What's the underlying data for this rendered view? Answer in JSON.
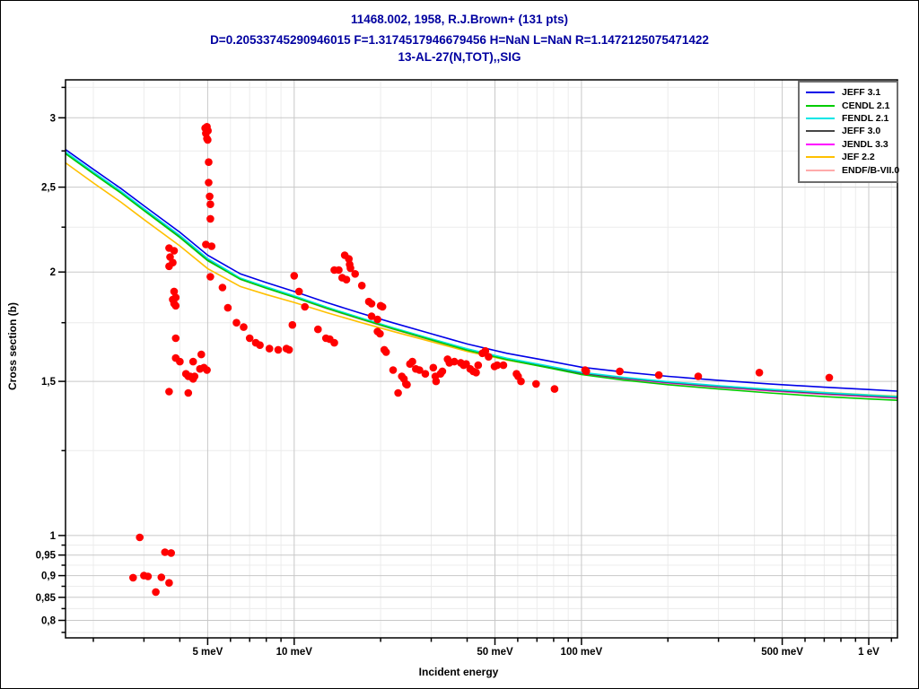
{
  "title": {
    "line1": "11468.002, 1958, R.J.Brown+ (131 pts)",
    "line2": "D=0.20533745290946015 F=1.3174517946679456 H=NaN L=NaN R=1.1472125075471422",
    "line3": "13-AL-27(N,TOT),,SIG",
    "color": "#0000a0"
  },
  "axes": {
    "x_label": "Incident energy",
    "y_label": "Cross section (b)"
  },
  "chart_data": {
    "type": "scatter",
    "title": "13-AL-27(N,TOT),,SIG",
    "xlabel": "Incident energy",
    "ylabel": "Cross section (b)",
    "x_scale": "log",
    "y_scale": "log",
    "x_unit": "meV",
    "y_unit": "b",
    "x_range": [
      1.6,
      1259
    ],
    "y_range": [
      0.764,
      3.315
    ],
    "grid": true,
    "legend_position": "top-right",
    "x_ticks": [
      {
        "v": 5,
        "label": "5 meV"
      },
      {
        "v": 10,
        "label": "10 meV"
      },
      {
        "v": 50,
        "label": "50 meV"
      },
      {
        "v": 100,
        "label": "100 meV"
      },
      {
        "v": 500,
        "label": "500 meV"
      },
      {
        "v": 1000,
        "label": "1 eV"
      }
    ],
    "x_minor_ticks": [
      2,
      3,
      4,
      6,
      7,
      8,
      9,
      20,
      30,
      40,
      60,
      70,
      80,
      90,
      200,
      300,
      400,
      600,
      700,
      800,
      900,
      1200
    ],
    "y_ticks": [
      {
        "v": 3,
        "label": "3"
      },
      {
        "v": 2.5,
        "label": "2,5"
      },
      {
        "v": 2,
        "label": "2"
      },
      {
        "v": 1.5,
        "label": "1,5"
      },
      {
        "v": 1,
        "label": "1"
      },
      {
        "v": 0.95,
        "label": "0,95"
      },
      {
        "v": 0.9,
        "label": "0,9"
      },
      {
        "v": 0.85,
        "label": "0,85"
      },
      {
        "v": 0.8,
        "label": "0,8"
      }
    ],
    "y_minor_ticks": [
      3.25,
      2.75,
      2.25,
      1.75,
      1.25,
      0.975,
      0.925,
      0.875,
      0.825,
      0.775
    ],
    "curve_energies_meV": [
      1.6,
      2,
      2.5,
      3,
      4,
      5,
      6.5,
      8,
      10,
      13,
      17,
      22,
      30,
      40,
      55,
      75,
      100,
      140,
      200,
      300,
      450,
      700,
      1000,
      1259
    ],
    "evaluations": [
      {
        "name": "JEFF 3.1",
        "color": "#0000e8",
        "values": [
          2.76,
          2.62,
          2.49,
          2.38,
          2.22,
          2.09,
          1.99,
          1.945,
          1.9,
          1.845,
          1.795,
          1.75,
          1.7,
          1.655,
          1.615,
          1.585,
          1.557,
          1.537,
          1.52,
          1.504,
          1.49,
          1.477,
          1.468,
          1.462
        ]
      },
      {
        "name": "CENDL 2.1",
        "color": "#00cc00",
        "values": [
          2.73,
          2.59,
          2.46,
          2.35,
          2.19,
          2.06,
          1.962,
          1.916,
          1.872,
          1.818,
          1.768,
          1.723,
          1.673,
          1.628,
          1.588,
          1.557,
          1.527,
          1.505,
          1.487,
          1.47,
          1.455,
          1.441,
          1.432,
          1.427
        ]
      },
      {
        "name": "FENDL 2.1",
        "color": "#00e6e6",
        "values": [
          2.742,
          2.602,
          2.472,
          2.362,
          2.202,
          2.072,
          1.968,
          1.923,
          1.878,
          1.823,
          1.773,
          1.728,
          1.678,
          1.634,
          1.594,
          1.564,
          1.536,
          1.516,
          1.499,
          1.483,
          1.469,
          1.456,
          1.447,
          1.441
        ]
      },
      {
        "name": "JEFF 3.0",
        "color": "#464646",
        "values": [
          2.738,
          2.598,
          2.468,
          2.358,
          2.198,
          2.068,
          1.965,
          1.92,
          1.875,
          1.82,
          1.77,
          1.725,
          1.675,
          1.631,
          1.591,
          1.561,
          1.533,
          1.513,
          1.496,
          1.48,
          1.466,
          1.453,
          1.444,
          1.438
        ]
      },
      {
        "name": "JENDL 3.3",
        "color": "#ff00ff",
        "values": [
          2.735,
          2.595,
          2.465,
          2.355,
          2.195,
          2.065,
          1.963,
          1.918,
          1.873,
          1.818,
          1.768,
          1.723,
          1.673,
          1.629,
          1.589,
          1.559,
          1.531,
          1.511,
          1.494,
          1.478,
          1.464,
          1.451,
          1.442,
          1.436
        ]
      },
      {
        "name": "JEF 2.2",
        "color": "#ffc000",
        "values": [
          2.665,
          2.528,
          2.402,
          2.296,
          2.142,
          2.018,
          1.925,
          1.885,
          1.846,
          1.797,
          1.752,
          1.711,
          1.665,
          1.623,
          1.586,
          1.558,
          1.532,
          1.513,
          1.497,
          1.482,
          1.469,
          1.457,
          1.448,
          1.443
        ]
      },
      {
        "name": "ENDF/B-VII.0",
        "color": "#ffaaaa",
        "values": [
          2.733,
          2.593,
          2.463,
          2.353,
          2.193,
          2.063,
          1.961,
          1.916,
          1.871,
          1.816,
          1.766,
          1.721,
          1.671,
          1.627,
          1.587,
          1.557,
          1.529,
          1.509,
          1.492,
          1.476,
          1.462,
          1.449,
          1.44,
          1.434
        ]
      }
    ],
    "experimental": {
      "name": "11468.002, 1958, R.J.Brown+",
      "color": "#ff0000",
      "marker": "filled-circle",
      "points_meV_b": [
        [
          2.75,
          0.895
        ],
        [
          2.9,
          0.995
        ],
        [
          3.0,
          0.9
        ],
        [
          3.1,
          0.898
        ],
        [
          3.3,
          0.862
        ],
        [
          3.45,
          0.896
        ],
        [
          3.55,
          0.957
        ],
        [
          3.67,
          0.883
        ],
        [
          3.73,
          0.955
        ],
        [
          3.67,
          2.13
        ],
        [
          3.82,
          2.115
        ],
        [
          3.7,
          2.08
        ],
        [
          3.78,
          2.05
        ],
        [
          3.67,
          2.03
        ],
        [
          3.82,
          1.9
        ],
        [
          3.87,
          1.87
        ],
        [
          3.78,
          1.86
        ],
        [
          3.82,
          1.84
        ],
        [
          3.87,
          1.83
        ],
        [
          3.87,
          1.68
        ],
        [
          3.87,
          1.595
        ],
        [
          4.0,
          1.58
        ],
        [
          4.2,
          1.53
        ],
        [
          4.28,
          1.52
        ],
        [
          4.35,
          1.52
        ],
        [
          4.45,
          1.51
        ],
        [
          4.5,
          1.52
        ],
        [
          3.67,
          1.46
        ],
        [
          4.28,
          1.455
        ],
        [
          4.45,
          1.58
        ],
        [
          4.7,
          1.55
        ],
        [
          4.75,
          1.61
        ],
        [
          4.85,
          1.555
        ],
        [
          4.97,
          1.545
        ],
        [
          4.9,
          2.92
        ],
        [
          4.97,
          2.93
        ],
        [
          5.01,
          2.9
        ],
        [
          4.93,
          2.88
        ],
        [
          4.97,
          2.84
        ],
        [
          5.0,
          2.83
        ],
        [
          5.04,
          2.67
        ],
        [
          5.04,
          2.53
        ],
        [
          5.08,
          2.44
        ],
        [
          5.11,
          2.39
        ],
        [
          5.11,
          2.3
        ],
        [
          4.93,
          2.15
        ],
        [
          5.16,
          2.14
        ],
        [
          5.11,
          1.975
        ],
        [
          5.63,
          1.92
        ],
        [
          5.88,
          1.82
        ],
        [
          6.3,
          1.75
        ],
        [
          6.67,
          1.73
        ],
        [
          7.0,
          1.68
        ],
        [
          7.35,
          1.66
        ],
        [
          7.6,
          1.65
        ],
        [
          8.2,
          1.635
        ],
        [
          8.8,
          1.63
        ],
        [
          9.4,
          1.635
        ],
        [
          9.6,
          1.63
        ],
        [
          9.86,
          1.74
        ],
        [
          10.0,
          1.98
        ],
        [
          10.4,
          1.9
        ],
        [
          10.9,
          1.825
        ],
        [
          12.1,
          1.72
        ],
        [
          12.9,
          1.68
        ],
        [
          13.3,
          1.676
        ],
        [
          13.8,
          1.66
        ],
        [
          13.8,
          2.01
        ],
        [
          14.3,
          2.01
        ],
        [
          15.0,
          2.09
        ],
        [
          15.5,
          2.07
        ],
        [
          15.6,
          2.04
        ],
        [
          15.7,
          2.02
        ],
        [
          16.3,
          1.99
        ],
        [
          14.7,
          1.97
        ],
        [
          15.2,
          1.96
        ],
        [
          17.2,
          1.93
        ],
        [
          18.2,
          1.85
        ],
        [
          18.6,
          1.84
        ],
        [
          20.0,
          1.83
        ],
        [
          20.3,
          1.825
        ],
        [
          18.6,
          1.78
        ],
        [
          19.5,
          1.765
        ],
        [
          19.5,
          1.71
        ],
        [
          19.9,
          1.7
        ],
        [
          20.6,
          1.63
        ],
        [
          20.9,
          1.62
        ],
        [
          22.1,
          1.545
        ],
        [
          23.0,
          1.455
        ],
        [
          23.7,
          1.52
        ],
        [
          24.1,
          1.51
        ],
        [
          24.5,
          1.49
        ],
        [
          24.7,
          1.487
        ],
        [
          25.3,
          1.57
        ],
        [
          25.8,
          1.58
        ],
        [
          26.5,
          1.55
        ],
        [
          27.3,
          1.545
        ],
        [
          28.6,
          1.53
        ],
        [
          30.5,
          1.555
        ],
        [
          31.0,
          1.52
        ],
        [
          31.2,
          1.5
        ],
        [
          32.3,
          1.53
        ],
        [
          32.8,
          1.54
        ],
        [
          34.2,
          1.59
        ],
        [
          34.7,
          1.575
        ],
        [
          36.1,
          1.58
        ],
        [
          38.0,
          1.575
        ],
        [
          38.9,
          1.565
        ],
        [
          39.7,
          1.57
        ],
        [
          41.0,
          1.55
        ],
        [
          42.0,
          1.54
        ],
        [
          43.0,
          1.535
        ],
        [
          43.7,
          1.565
        ],
        [
          45.2,
          1.615
        ],
        [
          46.3,
          1.625
        ],
        [
          47.5,
          1.6
        ],
        [
          49.8,
          1.56
        ],
        [
          50.9,
          1.565
        ],
        [
          53.5,
          1.565
        ],
        [
          59.4,
          1.53
        ],
        [
          60.2,
          1.52
        ],
        [
          61.6,
          1.5
        ],
        [
          69.5,
          1.49
        ],
        [
          80.6,
          1.47
        ],
        [
          103,
          1.545
        ],
        [
          104,
          1.54
        ],
        [
          136,
          1.54
        ],
        [
          186,
          1.525
        ],
        [
          255,
          1.52
        ],
        [
          416,
          1.535
        ],
        [
          729,
          1.515
        ]
      ]
    }
  }
}
